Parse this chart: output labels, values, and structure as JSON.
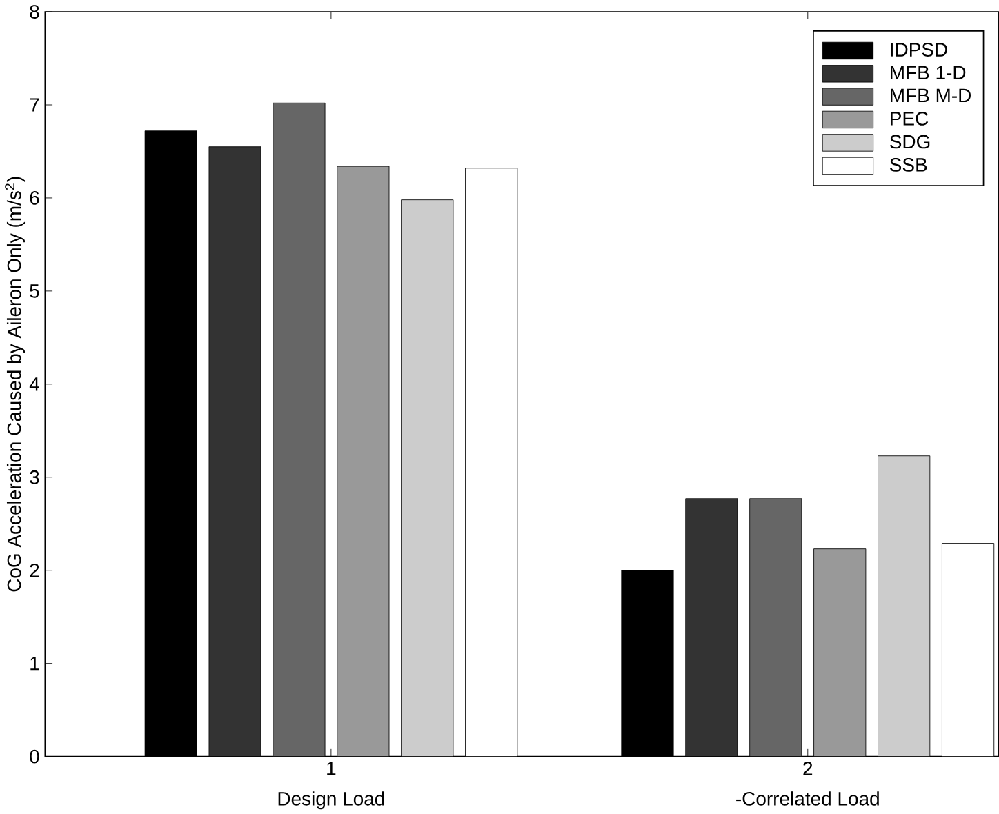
{
  "chart_data": {
    "type": "bar",
    "ylabel": "CoG Acceleration Caused by Aileron Only (m/s$^{2}$)",
    "categories": [
      "1",
      "2"
    ],
    "annotations": [
      "Design Load",
      "-Correlated Load"
    ],
    "series": [
      {
        "name": "IDPSD",
        "color": "#000000",
        "values": [
          6.72,
          2.0
        ]
      },
      {
        "name": "MFB 1-D",
        "color": "#333333",
        "values": [
          6.55,
          2.77
        ]
      },
      {
        "name": "MFB M-D",
        "color": "#666666",
        "values": [
          7.02,
          2.77
        ]
      },
      {
        "name": "PEC",
        "color": "#999999",
        "values": [
          6.34,
          2.23
        ]
      },
      {
        "name": "SDG",
        "color": "#cccccc",
        "values": [
          5.98,
          3.23
        ]
      },
      {
        "name": "SSB",
        "color": "#ffffff",
        "values": [
          6.32,
          2.29
        ]
      }
    ],
    "ylim": [
      0,
      8
    ],
    "yticks": [
      0,
      1,
      2,
      3,
      4,
      5,
      6,
      7,
      8
    ],
    "grid": false,
    "legend": "top right"
  }
}
